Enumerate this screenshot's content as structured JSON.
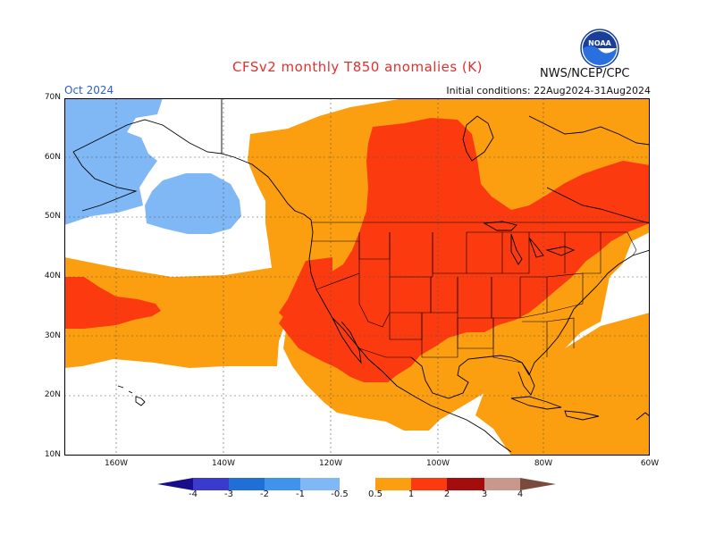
{
  "title": "CFSv2 monthly T850 anomalies (K)",
  "agency": "NWS/NCEP/CPC",
  "month": "Oct 2024",
  "initial_conditions": "Initial conditions: 22Aug2024-31Aug2024",
  "logo_text": "NOAA",
  "lat_labels": [
    "70N",
    "60N",
    "50N",
    "40N",
    "30N",
    "20N",
    "10N"
  ],
  "lon_labels": [
    "160W",
    "140W",
    "120W",
    "100W",
    "80W",
    "60W"
  ],
  "colorbar": {
    "labels": [
      "-4",
      "-3",
      "-2",
      "-1",
      "-0.5",
      "0.5",
      "1",
      "2",
      "3",
      "4"
    ],
    "colors": [
      "#1a0d8c",
      "#3a3acc",
      "#1f6fd6",
      "#3f93ea",
      "#7fb8f5",
      "#ffffff",
      "#fb9e10",
      "#fb3a10",
      "#a30d0d",
      "#c9988c",
      "#7a4a3c"
    ]
  },
  "anomaly_colors": {
    "lt_-0.5": "#7fb8f5",
    "0.5_1": "#fb9e10",
    "1_2": "#fb3a10",
    "map_frame": "#000000"
  }
}
